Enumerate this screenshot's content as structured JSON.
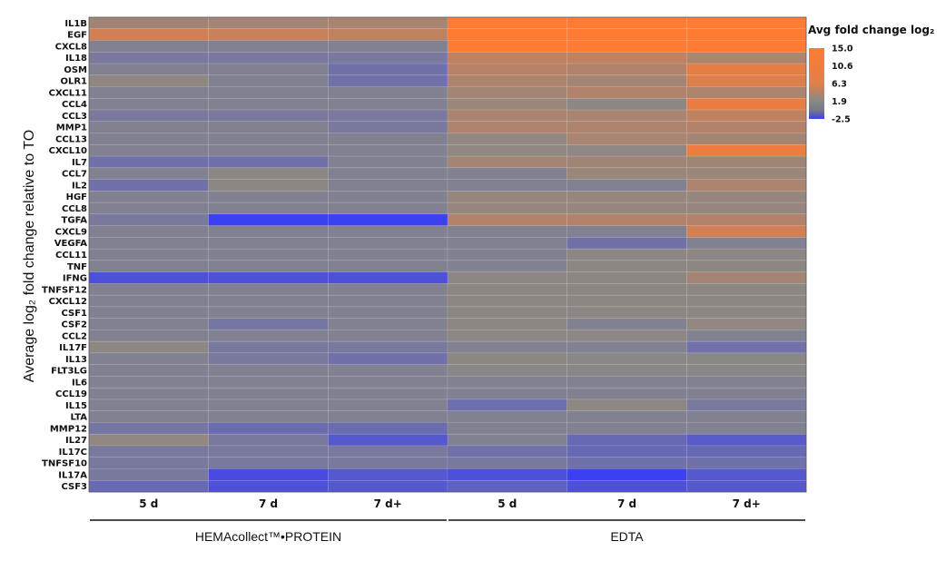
{
  "chart_data": {
    "type": "heatmap",
    "title": "",
    "ylabel": "Average log₂ fold change relative to TO",
    "legend": {
      "title": "Avg fold change log₂",
      "position": "top-right",
      "ticks": [
        "15.0",
        "10.6",
        "6.3",
        "1.9",
        "-2.5"
      ],
      "min": -2.5,
      "max": 15.0,
      "colors": {
        "low": "#3b40f0",
        "mid": "#888888",
        "high": "#ff7b33"
      }
    },
    "groups": [
      {
        "name": "HEMAcollect™•PROTEIN",
        "columns": [
          "5 d",
          "7 d",
          "7 d+"
        ]
      },
      {
        "name": "EDTA",
        "columns": [
          "5 d",
          "7 d",
          "7 d+"
        ]
      }
    ],
    "columns": [
      "5 d",
      "7 d",
      "7 d+",
      "5 d",
      "7 d",
      "7 d+"
    ],
    "rows": [
      "IL1B",
      "EGF",
      "CXCL8",
      "IL18",
      "OSM",
      "OLR1",
      "CXCL11",
      "CCL4",
      "CCL3",
      "MMP1",
      "CCL13",
      "CXCL10",
      "IL7",
      "CCL7",
      "IL2",
      "HGF",
      "CCL8",
      "TGFA",
      "CXCL9",
      "VEGFA",
      "CCL11",
      "TNF",
      "IFNG",
      "TNFSF12",
      "CXCL12",
      "CSF1",
      "CSF2",
      "CCL2",
      "IL17F",
      "IL13",
      "FLT3LG",
      "IL6",
      "CCL19",
      "IL15",
      "LTA",
      "MMP12",
      "IL27",
      "IL17C",
      "TNFSF10",
      "IL17A",
      "CSF3"
    ],
    "values": [
      [
        4.5,
        5.0,
        5.5,
        15.0,
        15.0,
        15.0
      ],
      [
        10.0,
        9.0,
        8.0,
        15.0,
        15.0,
        15.0
      ],
      [
        1.5,
        1.5,
        1.5,
        15.0,
        15.0,
        15.0
      ],
      [
        1.0,
        1.0,
        1.0,
        8.0,
        8.0,
        6.0
      ],
      [
        1.5,
        1.5,
        0.5,
        7.0,
        6.5,
        12.0
      ],
      [
        2.8,
        1.5,
        0.5,
        6.0,
        5.0,
        11.0
      ],
      [
        1.5,
        1.5,
        1.5,
        5.0,
        6.5,
        6.0
      ],
      [
        1.5,
        1.5,
        1.5,
        4.0,
        2.5,
        12.5
      ],
      [
        1.0,
        1.0,
        1.0,
        5.5,
        5.5,
        8.0
      ],
      [
        1.5,
        1.5,
        1.0,
        6.0,
        6.0,
        6.5
      ],
      [
        1.5,
        1.5,
        1.5,
        3.0,
        5.5,
        5.0
      ],
      [
        1.5,
        1.5,
        1.5,
        2.8,
        2.7,
        13.0
      ],
      [
        0.5,
        0.5,
        1.5,
        5.0,
        4.5,
        4.5
      ],
      [
        1.5,
        2.5,
        1.5,
        1.5,
        4.0,
        4.0
      ],
      [
        0.5,
        2.5,
        1.5,
        1.5,
        1.5,
        6.0
      ],
      [
        1.5,
        1.5,
        1.5,
        3.5,
        3.5,
        3.5
      ],
      [
        1.5,
        1.5,
        1.5,
        3.5,
        3.5,
        3.5
      ],
      [
        1.0,
        -2.5,
        -2.5,
        6.5,
        6.5,
        6.5
      ],
      [
        1.5,
        1.5,
        1.5,
        1.5,
        1.5,
        10.0
      ],
      [
        1.5,
        1.5,
        1.5,
        1.5,
        0.5,
        1.5
      ],
      [
        1.5,
        1.5,
        1.5,
        1.5,
        2.5,
        2.5
      ],
      [
        1.5,
        1.5,
        1.5,
        1.5,
        2.5,
        2.5
      ],
      [
        -1.5,
        -1.5,
        -1.5,
        2.5,
        2.5,
        5.0
      ],
      [
        1.5,
        1.5,
        1.5,
        2.5,
        2.5,
        2.5
      ],
      [
        1.5,
        1.5,
        1.5,
        2.5,
        2.5,
        2.5
      ],
      [
        1.5,
        1.5,
        1.5,
        2.5,
        2.5,
        2.5
      ],
      [
        1.5,
        0.8,
        1.5,
        2.5,
        1.5,
        3.0
      ],
      [
        1.5,
        1.5,
        1.5,
        2.5,
        2.5,
        1.5
      ],
      [
        2.5,
        1.0,
        1.0,
        1.5,
        1.5,
        0.5
      ],
      [
        1.5,
        1.0,
        0.5,
        2.5,
        2.0,
        2.0
      ],
      [
        1.5,
        1.5,
        1.5,
        2.0,
        2.0,
        2.0
      ],
      [
        1.5,
        1.5,
        1.5,
        1.5,
        1.5,
        1.5
      ],
      [
        1.5,
        1.5,
        1.5,
        1.5,
        1.5,
        1.5
      ],
      [
        1.5,
        1.5,
        1.5,
        0.3,
        2.5,
        1.0
      ],
      [
        1.5,
        1.5,
        1.5,
        1.5,
        1.5,
        1.5
      ],
      [
        0.8,
        0.2,
        0.2,
        1.5,
        1.5,
        1.5
      ],
      [
        3.0,
        1.0,
        -1.0,
        1.5,
        0.0,
        -0.8
      ],
      [
        1.0,
        1.0,
        1.0,
        0.5,
        0.0,
        0.0
      ],
      [
        1.0,
        1.0,
        1.0,
        1.0,
        0.5,
        0.5
      ],
      [
        1.0,
        -1.8,
        -1.0,
        -1.5,
        -2.5,
        -1.0
      ],
      [
        0.0,
        -1.5,
        -1.0,
        -0.5,
        -1.5,
        -1.0
      ]
    ]
  }
}
